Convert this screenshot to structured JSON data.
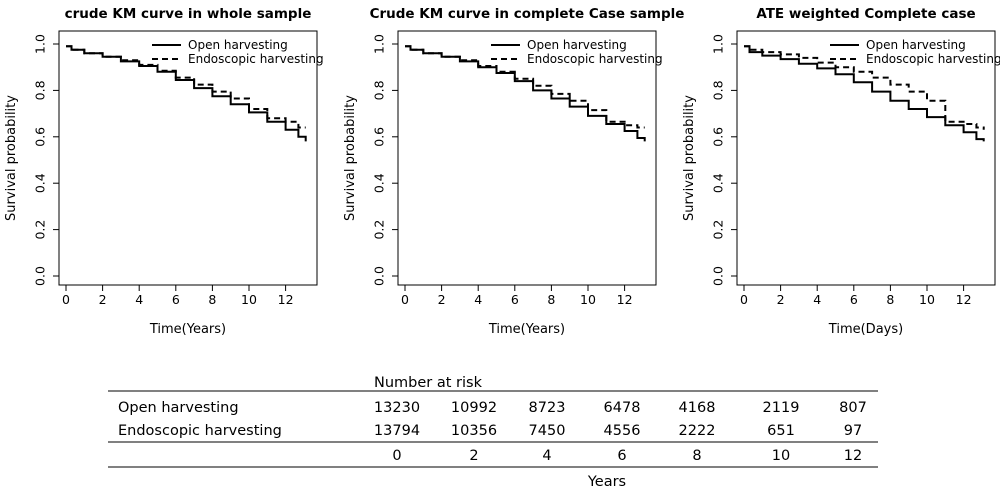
{
  "chart_data": [
    {
      "type": "line",
      "title": "crude KM curve in whole sample",
      "xlabel": "Time(Years)",
      "ylabel": "Survival probability",
      "xlim": [
        0,
        13.2
      ],
      "ylim": [
        0,
        1
      ],
      "xticks": [
        "0",
        "2",
        "4",
        "6",
        "8",
        "10",
        "12"
      ],
      "yticks": [
        "0.0",
        "0.2",
        "0.4",
        "0.6",
        "0.8",
        "1.0"
      ],
      "legend_position": "top-right",
      "series": [
        {
          "name": "Open harvesting",
          "style": "solid",
          "x": [
            0,
            0.3,
            1,
            2,
            3,
            4,
            5,
            6,
            7,
            8,
            9,
            10,
            11,
            12,
            12.7,
            13.1
          ],
          "values": [
            0.99,
            0.975,
            0.96,
            0.945,
            0.925,
            0.905,
            0.88,
            0.845,
            0.81,
            0.775,
            0.74,
            0.705,
            0.665,
            0.63,
            0.6,
            0.58
          ]
        },
        {
          "name": "Endoscopic harvesting",
          "style": "dashed",
          "x": [
            0,
            0.3,
            1,
            2,
            3,
            4,
            5,
            6,
            7,
            8,
            9,
            10,
            11,
            12,
            12.7,
            13.1
          ],
          "values": [
            0.99,
            0.975,
            0.96,
            0.945,
            0.93,
            0.91,
            0.885,
            0.855,
            0.825,
            0.795,
            0.765,
            0.72,
            0.68,
            0.665,
            0.64,
            0.64
          ]
        }
      ]
    },
    {
      "type": "line",
      "title": "Crude KM curve in complete Case sample",
      "xlabel": "Time(Years)",
      "ylabel": "Survival probability",
      "xlim": [
        0,
        13.2
      ],
      "ylim": [
        0,
        1
      ],
      "xticks": [
        "0",
        "2",
        "4",
        "6",
        "8",
        "10",
        "12"
      ],
      "yticks": [
        "0.0",
        "0.2",
        "0.4",
        "0.6",
        "0.8",
        "1.0"
      ],
      "legend_position": "top-right",
      "series": [
        {
          "name": "Open harvesting",
          "style": "solid",
          "x": [
            0,
            0.3,
            1,
            2,
            3,
            4,
            5,
            6,
            7,
            8,
            9,
            10,
            11,
            12,
            12.7,
            13.1
          ],
          "values": [
            0.99,
            0.975,
            0.96,
            0.945,
            0.925,
            0.9,
            0.875,
            0.84,
            0.8,
            0.765,
            0.73,
            0.69,
            0.655,
            0.625,
            0.595,
            0.58
          ]
        },
        {
          "name": "Endoscopic harvesting",
          "style": "dashed",
          "x": [
            0,
            0.3,
            1,
            2,
            3,
            4,
            5,
            6,
            7,
            8,
            9,
            10,
            11,
            12,
            12.7,
            13.1
          ],
          "values": [
            0.99,
            0.975,
            0.96,
            0.945,
            0.93,
            0.905,
            0.88,
            0.85,
            0.82,
            0.785,
            0.755,
            0.715,
            0.665,
            0.65,
            0.64,
            0.64
          ]
        }
      ]
    },
    {
      "type": "line",
      "title": "ATE weighted Complete case",
      "xlabel": "Time(Days)",
      "ylabel": "Survival probability",
      "xlim": [
        0,
        13.2
      ],
      "ylim": [
        0,
        1
      ],
      "xticks": [
        "0",
        "2",
        "4",
        "6",
        "8",
        "10",
        "12"
      ],
      "yticks": [
        "0.0",
        "0.2",
        "0.4",
        "0.6",
        "0.8",
        "1.0"
      ],
      "legend_position": "top-right",
      "series": [
        {
          "name": "Open harvesting",
          "style": "solid",
          "x": [
            0,
            0.3,
            1,
            2,
            3,
            4,
            5,
            6,
            7,
            8,
            9,
            10,
            11,
            12,
            12.7,
            13.1
          ],
          "values": [
            0.99,
            0.965,
            0.95,
            0.935,
            0.915,
            0.895,
            0.87,
            0.835,
            0.795,
            0.755,
            0.72,
            0.685,
            0.65,
            0.62,
            0.59,
            0.58
          ]
        },
        {
          "name": "Endoscopic harvesting",
          "style": "dashed",
          "x": [
            0,
            0.3,
            1,
            2,
            3,
            4,
            5,
            6,
            7,
            8,
            9,
            10,
            11,
            12,
            12.7,
            13.1
          ],
          "values": [
            0.99,
            0.975,
            0.965,
            0.955,
            0.94,
            0.92,
            0.9,
            0.88,
            0.855,
            0.825,
            0.795,
            0.755,
            0.665,
            0.655,
            0.64,
            0.63
          ]
        }
      ]
    }
  ],
  "risk_table": {
    "title": "Number at risk",
    "rows": [
      {
        "label": "Open harvesting",
        "values": [
          "13230",
          "10992",
          "8723",
          "6478",
          "4168",
          "2119",
          "807"
        ]
      },
      {
        "label": "Endoscopic harvesting",
        "values": [
          "13794",
          "10356",
          "7450",
          "4556",
          "2222",
          "651",
          "97"
        ]
      }
    ],
    "times": [
      "0",
      "2",
      "4",
      "6",
      "8",
      "10",
      "12"
    ],
    "xlabel": "Years"
  }
}
